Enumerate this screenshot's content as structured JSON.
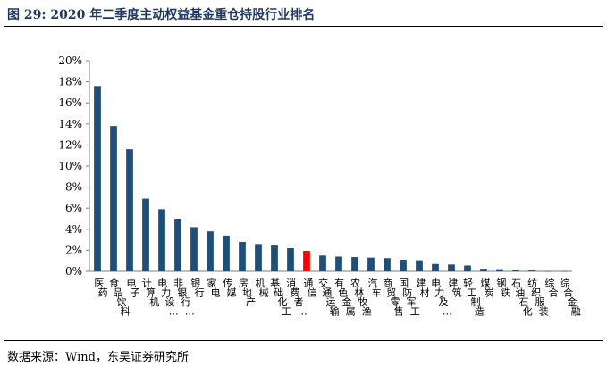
{
  "title": "图 29:  2020 年二季度主动权益基金重仓持股行业排名",
  "source": "数据来源：Wind，东吴证券研究所",
  "colors": {
    "bar": "#1f4e79",
    "highlight": "#ff0000",
    "title": "#1f3864"
  },
  "chart_data": {
    "type": "bar",
    "title": "",
    "xlabel": "",
    "ylabel": "",
    "ylim": [
      0,
      20
    ],
    "ytick_labels": [
      "0%",
      "2%",
      "4%",
      "6%",
      "8%",
      "10%",
      "12%",
      "14%",
      "16%",
      "18%",
      "20%"
    ],
    "grid": false,
    "value_unit": "%",
    "highlight_category": "通信",
    "categories": [
      "医药",
      "食品饮料",
      "电子",
      "计算机",
      "电力设…",
      "非银行…",
      "银行",
      "家电",
      "传媒",
      "房地产",
      "机械",
      "基础化工",
      "消费者…",
      "通信",
      "交通运输",
      "有色金属",
      "农林牧渔",
      "汽车",
      "商贸零售",
      "国防军工",
      "建材",
      "电力及…",
      "建筑",
      "轻工制造",
      "煤炭",
      "钢铁",
      "石油石化",
      "纺织服装",
      "综合",
      "综合金融"
    ],
    "values": [
      17.6,
      13.8,
      11.6,
      6.9,
      5.9,
      5.0,
      4.2,
      3.8,
      3.4,
      2.8,
      2.6,
      2.45,
      2.2,
      1.95,
      1.5,
      1.4,
      1.35,
      1.3,
      1.25,
      1.1,
      1.05,
      0.7,
      0.65,
      0.55,
      0.25,
      0.2,
      0.12,
      0.08,
      0.02,
      0.02
    ]
  }
}
